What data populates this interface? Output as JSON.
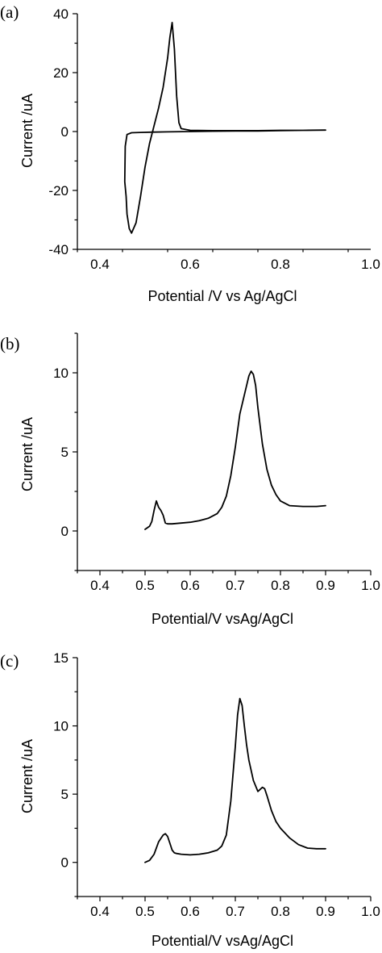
{
  "chart_data": [
    {
      "panel_label": "(a)",
      "type": "line",
      "xlabel": "Potential /V vs Ag/AgCl",
      "ylabel": "Current /uA",
      "xlim": [
        0.35,
        1.0
      ],
      "ylim": [
        -40,
        40
      ],
      "xticks": [
        0.4,
        0.6,
        0.8,
        1.0
      ],
      "xtick_labels": [
        "0.4",
        "0.6",
        "0.8",
        "1.0"
      ],
      "yticks": [
        -40,
        -20,
        0,
        20,
        40
      ],
      "ytick_labels": [
        "-40",
        "-20",
        "0",
        "20",
        "40"
      ],
      "grid": false,
      "series": [
        {
          "x": [
            0.9,
            0.85,
            0.8,
            0.75,
            0.7,
            0.65,
            0.6,
            0.58,
            0.575,
            0.57,
            0.565,
            0.56,
            0.555,
            0.55,
            0.54,
            0.53,
            0.52,
            0.51,
            0.5,
            0.49,
            0.48,
            0.47,
            0.465,
            0.46,
            0.458,
            0.455,
            0.456,
            0.46,
            0.47,
            0.49,
            0.52,
            0.55,
            0.6,
            0.65,
            0.7,
            0.75,
            0.8,
            0.85,
            0.9
          ],
          "y": [
            0.5,
            0.4,
            0.4,
            0.3,
            0.3,
            0.3,
            0.4,
            1.0,
            3.0,
            12.0,
            28.0,
            37.0,
            32.0,
            25.0,
            15.0,
            8.0,
            2.0,
            -4.0,
            -12.0,
            -22.0,
            -31.0,
            -34.5,
            -33.0,
            -28.0,
            -22.0,
            -17.0,
            -5.0,
            -1.0,
            -0.4,
            -0.3,
            -0.2,
            -0.1,
            0.0,
            0.1,
            0.2,
            0.2,
            0.3,
            0.4,
            0.5
          ]
        }
      ]
    },
    {
      "panel_label": "(b)",
      "type": "line",
      "xlabel": "Potential/V vsAg/AgCl",
      "ylabel": "Current /uA",
      "xlim": [
        0.35,
        1.0
      ],
      "ylim": [
        -2.5,
        12.5
      ],
      "xticks": [
        0.4,
        0.5,
        0.6,
        0.7,
        0.8,
        0.9,
        1.0
      ],
      "xtick_labels": [
        "0.4",
        "0.5",
        "0.6",
        "0.7",
        "0.8",
        "0.9",
        "1.0"
      ],
      "yticks": [
        0,
        5,
        10
      ],
      "ytick_labels": [
        "0",
        "5",
        "10"
      ],
      "grid": false,
      "series": [
        {
          "x": [
            0.5,
            0.51,
            0.515,
            0.52,
            0.525,
            0.53,
            0.535,
            0.54,
            0.545,
            0.55,
            0.56,
            0.58,
            0.6,
            0.62,
            0.64,
            0.66,
            0.67,
            0.68,
            0.69,
            0.7,
            0.71,
            0.72,
            0.73,
            0.735,
            0.74,
            0.745,
            0.75,
            0.76,
            0.77,
            0.78,
            0.79,
            0.8,
            0.82,
            0.85,
            0.88,
            0.9
          ],
          "y": [
            0.1,
            0.3,
            0.6,
            1.3,
            1.9,
            1.5,
            1.3,
            1.0,
            0.5,
            0.45,
            0.45,
            0.5,
            0.55,
            0.65,
            0.8,
            1.1,
            1.5,
            2.2,
            3.5,
            5.3,
            7.4,
            8.6,
            9.8,
            10.1,
            9.9,
            9.2,
            7.8,
            5.5,
            3.9,
            2.9,
            2.3,
            1.9,
            1.6,
            1.55,
            1.55,
            1.6
          ]
        }
      ]
    },
    {
      "panel_label": "(c)",
      "type": "line",
      "xlabel": "Potential/V vsAg/AgCl",
      "ylabel": "Current /uA",
      "xlim": [
        0.35,
        1.0
      ],
      "ylim": [
        -2.5,
        15
      ],
      "xticks": [
        0.4,
        0.5,
        0.6,
        0.7,
        0.8,
        0.9,
        1.0
      ],
      "xtick_labels": [
        "0.4",
        "0.5",
        "0.6",
        "0.7",
        "0.8",
        "0.9",
        "1.0"
      ],
      "yticks": [
        0,
        5,
        10,
        15
      ],
      "ytick_labels": [
        "0",
        "5",
        "10",
        "15"
      ],
      "grid": false,
      "series": [
        {
          "x": [
            0.5,
            0.51,
            0.52,
            0.53,
            0.54,
            0.545,
            0.55,
            0.555,
            0.56,
            0.565,
            0.57,
            0.58,
            0.6,
            0.62,
            0.64,
            0.66,
            0.67,
            0.68,
            0.69,
            0.7,
            0.705,
            0.71,
            0.715,
            0.72,
            0.725,
            0.73,
            0.74,
            0.75,
            0.76,
            0.765,
            0.77,
            0.78,
            0.79,
            0.8,
            0.82,
            0.84,
            0.86,
            0.88,
            0.9
          ],
          "y": [
            0.0,
            0.15,
            0.6,
            1.5,
            2.0,
            2.1,
            1.9,
            1.4,
            0.9,
            0.7,
            0.65,
            0.6,
            0.55,
            0.6,
            0.7,
            0.9,
            1.2,
            2.0,
            4.5,
            8.5,
            10.8,
            12.0,
            11.5,
            10.0,
            8.6,
            7.5,
            6.0,
            5.2,
            5.5,
            5.4,
            4.9,
            3.8,
            3.0,
            2.5,
            1.8,
            1.3,
            1.05,
            1.0,
            1.0
          ]
        }
      ]
    }
  ]
}
